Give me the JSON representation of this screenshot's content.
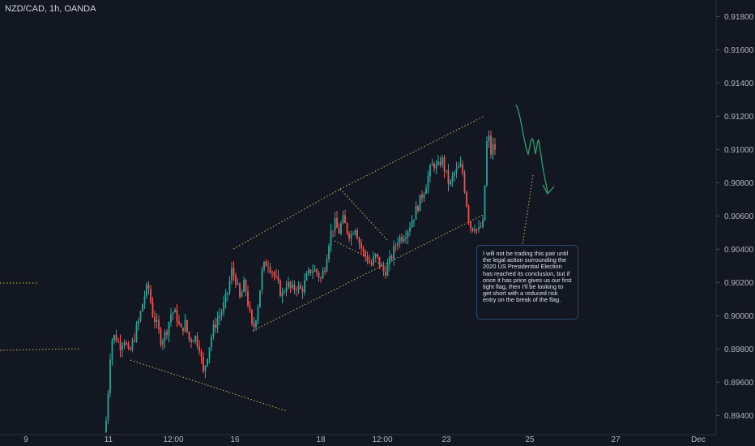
{
  "header": {
    "symbol": "NZD/CAD, 1h, OANDA"
  },
  "note": {
    "text": "I will not be trading this pair until the legal action surrounding the 2020 US Presidential Election has reached its conclusion, but if once it has price gives us our first tight flag, then I'll be looking to get short with a reduced risk entry on the break of the flag."
  },
  "colors": {
    "background": "#131722",
    "up": "#26a69a",
    "down": "#ef5350",
    "trendline": "#c9b458",
    "projection": "#2e9f6d",
    "axis_text": "#b2b5be",
    "callout_border": "#2a4a75"
  },
  "chart_data": {
    "type": "candlestick",
    "x_tick_labels": [
      "9",
      "11",
      "12:00",
      "16",
      "18",
      "12:00",
      "23",
      "25",
      "27",
      "Dec"
    ],
    "y_tick_labels": [
      "0.91800",
      "0.91600",
      "0.91400",
      "0.91200",
      "0.91000",
      "0.90800",
      "0.90600",
      "0.90400",
      "0.90200",
      "0.90000",
      "0.89800",
      "0.89600",
      "0.89400"
    ],
    "ylim": [
      0.8928,
      0.9187
    ],
    "y_axis_position": "right",
    "grid": false,
    "series": [
      {
        "keyframes": [
          {
            "x": 130,
            "close": 0.893
          },
          {
            "x": 133,
            "close": 0.8951
          },
          {
            "x": 137,
            "close": 0.8985
          },
          {
            "x": 142,
            "close": 0.8988
          },
          {
            "x": 148,
            "close": 0.8982
          },
          {
            "x": 153,
            "close": 0.8987
          },
          {
            "x": 159,
            "close": 0.8976
          },
          {
            "x": 165,
            "close": 0.8986
          },
          {
            "x": 172,
            "close": 0.8998
          },
          {
            "x": 178,
            "close": 0.9012
          },
          {
            "x": 183,
            "close": 0.9018
          },
          {
            "x": 188,
            "close": 0.9002
          },
          {
            "x": 193,
            "close": 0.8995
          },
          {
            "x": 199,
            "close": 0.8985
          },
          {
            "x": 205,
            "close": 0.899
          },
          {
            "x": 212,
            "close": 0.9003
          },
          {
            "x": 218,
            "close": 0.9
          },
          {
            "x": 223,
            "close": 0.899
          },
          {
            "x": 228,
            "close": 0.8996
          },
          {
            "x": 234,
            "close": 0.8985
          },
          {
            "x": 240,
            "close": 0.8988
          },
          {
            "x": 246,
            "close": 0.8982
          },
          {
            "x": 251,
            "close": 0.8965
          },
          {
            "x": 256,
            "close": 0.8977
          },
          {
            "x": 262,
            "close": 0.899
          },
          {
            "x": 268,
            "close": 0.8998
          },
          {
            "x": 274,
            "close": 0.9003
          },
          {
            "x": 280,
            "close": 0.9012
          },
          {
            "x": 286,
            "close": 0.9027
          },
          {
            "x": 291,
            "close": 0.9022
          },
          {
            "x": 296,
            "close": 0.901
          },
          {
            "x": 302,
            "close": 0.902
          },
          {
            "x": 307,
            "close": 0.9005
          },
          {
            "x": 312,
            "close": 0.899
          },
          {
            "x": 318,
            "close": 0.9005
          },
          {
            "x": 324,
            "close": 0.9028
          },
          {
            "x": 330,
            "close": 0.9033
          },
          {
            "x": 336,
            "close": 0.9027
          },
          {
            "x": 342,
            "close": 0.902
          },
          {
            "x": 348,
            "close": 0.9012
          },
          {
            "x": 354,
            "close": 0.902
          },
          {
            "x": 360,
            "close": 0.9015
          },
          {
            "x": 366,
            "close": 0.9018
          },
          {
            "x": 372,
            "close": 0.9015
          },
          {
            "x": 378,
            "close": 0.9022
          },
          {
            "x": 384,
            "close": 0.9028
          },
          {
            "x": 390,
            "close": 0.9027
          },
          {
            "x": 396,
            "close": 0.9022
          },
          {
            "x": 401,
            "close": 0.903
          },
          {
            "x": 407,
            "close": 0.9048
          },
          {
            "x": 413,
            "close": 0.9056
          },
          {
            "x": 418,
            "close": 0.905
          },
          {
            "x": 423,
            "close": 0.9058
          },
          {
            "x": 428,
            "close": 0.9052
          },
          {
            "x": 433,
            "close": 0.9048
          },
          {
            "x": 438,
            "close": 0.9055
          },
          {
            "x": 443,
            "close": 0.9045
          },
          {
            "x": 448,
            "close": 0.9038
          },
          {
            "x": 453,
            "close": 0.9035
          },
          {
            "x": 458,
            "close": 0.903
          },
          {
            "x": 463,
            "close": 0.9036
          },
          {
            "x": 468,
            "close": 0.9032
          },
          {
            "x": 474,
            "close": 0.9026
          },
          {
            "x": 479,
            "close": 0.903
          },
          {
            "x": 485,
            "close": 0.9038
          },
          {
            "x": 491,
            "close": 0.9046
          },
          {
            "x": 497,
            "close": 0.9048
          },
          {
            "x": 503,
            "close": 0.9052
          },
          {
            "x": 509,
            "close": 0.9058
          },
          {
            "x": 514,
            "close": 0.9064
          },
          {
            "x": 519,
            "close": 0.907
          },
          {
            "x": 525,
            "close": 0.9078
          },
          {
            "x": 530,
            "close": 0.9086
          },
          {
            "x": 535,
            "close": 0.9092
          },
          {
            "x": 540,
            "close": 0.9088
          },
          {
            "x": 545,
            "close": 0.9095
          },
          {
            "x": 550,
            "close": 0.9086
          },
          {
            "x": 555,
            "close": 0.9078
          },
          {
            "x": 560,
            "close": 0.9085
          },
          {
            "x": 565,
            "close": 0.9088
          },
          {
            "x": 570,
            "close": 0.909
          },
          {
            "x": 574,
            "close": 0.9075
          },
          {
            "x": 578,
            "close": 0.906
          },
          {
            "x": 582,
            "close": 0.9052
          },
          {
            "x": 586,
            "close": 0.9055
          },
          {
            "x": 590,
            "close": 0.905
          },
          {
            "x": 594,
            "close": 0.9054
          },
          {
            "x": 597,
            "close": 0.9055
          },
          {
            "x": 600,
            "close": 0.9102
          },
          {
            "x": 603,
            "close": 0.9108
          },
          {
            "x": 606,
            "close": 0.9098
          },
          {
            "x": 609,
            "close": 0.9102
          },
          {
            "x": 612,
            "close": 0.91
          }
        ]
      }
    ]
  }
}
